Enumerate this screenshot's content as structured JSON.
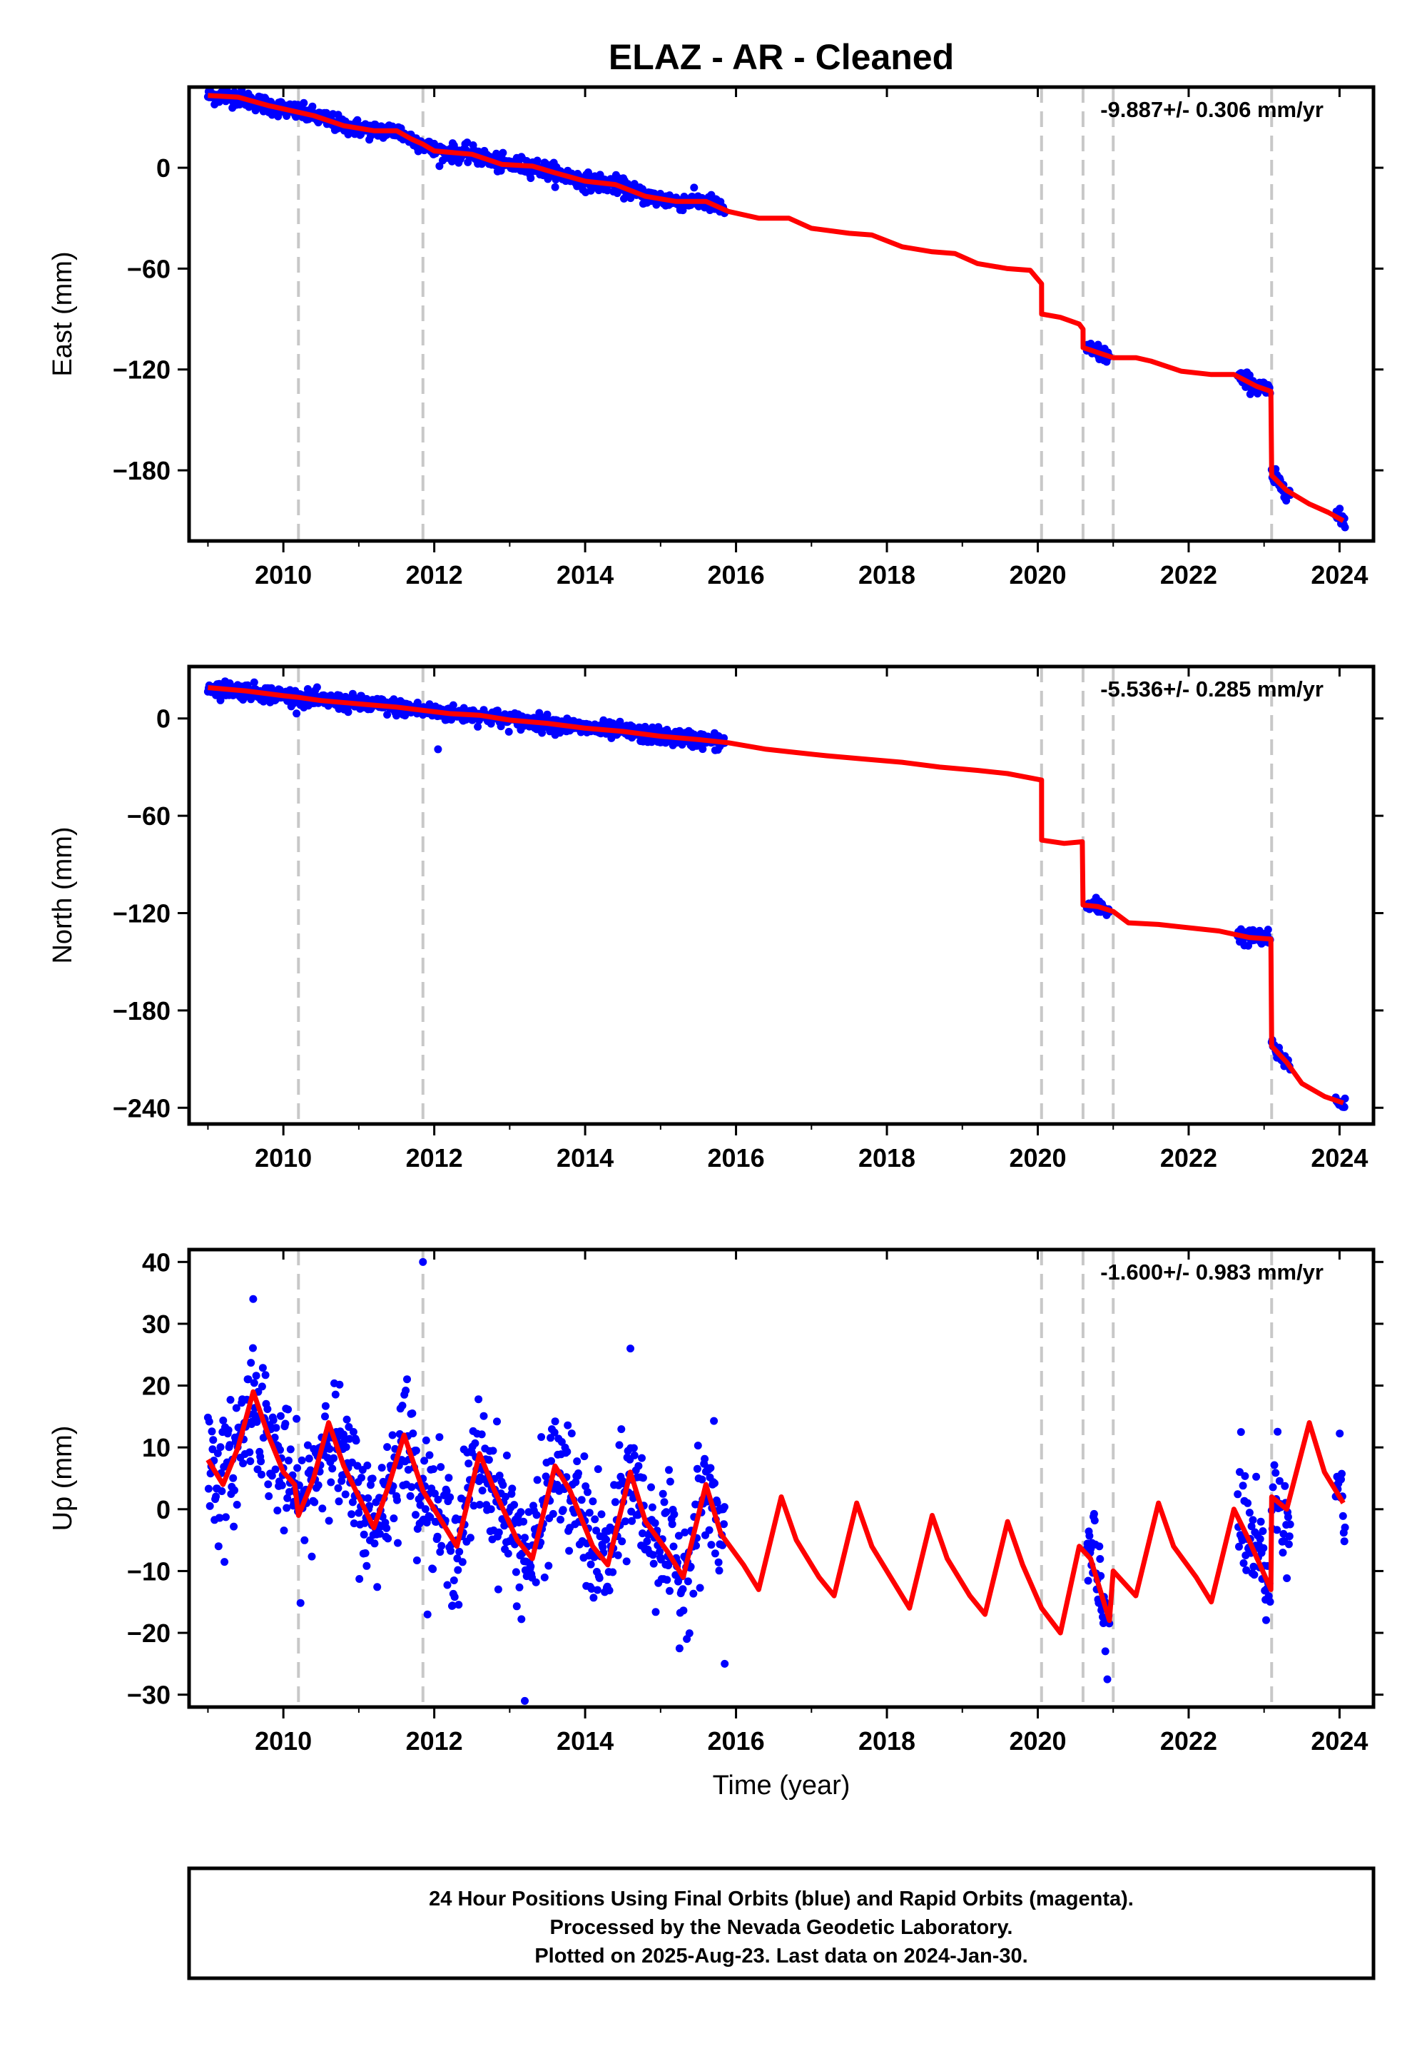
{
  "title": "ELAZ  - AR - Cleaned",
  "colors": {
    "data_points": "#0000ff",
    "model_line": "#ff0000",
    "event_lines": "#c8c8c8",
    "frame": "#000000"
  },
  "xlabel": "Time (year)",
  "footer": {
    "line1": "24 Hour Positions Using Final Orbits (blue) and Rapid Orbits (magenta).",
    "line2": "Processed by the Nevada Geodetic Laboratory.",
    "line3": "Plotted on 2025-Aug-23. Last data on 2024-Jan-30."
  },
  "chart_data": [
    {
      "type": "scatter",
      "name": "east",
      "ylabel": "East (mm)",
      "rate_label": "-9.887+/- 0.306 mm/yr",
      "xlim": [
        2008.75,
        2024.45
      ],
      "ylim": [
        -222,
        48
      ],
      "x_ticks": [
        2010,
        2012,
        2014,
        2016,
        2018,
        2020,
        2022,
        2024
      ],
      "y_ticks": [
        0,
        -60,
        -120,
        -180
      ],
      "event_lines": [
        2010.2,
        2011.85,
        2020.05,
        2020.6,
        2021.0,
        2023.1
      ],
      "data_segments": [
        [
          2009.0,
          2015.85
        ],
        [
          2020.65,
          2020.95
        ],
        [
          2022.65,
          2023.08
        ],
        [
          2023.1,
          2023.35
        ],
        [
          2023.95,
          2024.08
        ]
      ],
      "scatter_noise_mm": 2.5,
      "model": [
        [
          2009.0,
          43
        ],
        [
          2009.4,
          42
        ],
        [
          2009.8,
          37
        ],
        [
          2010.2,
          33
        ],
        [
          2010.4,
          31
        ],
        [
          2010.8,
          25
        ],
        [
          2011.2,
          22
        ],
        [
          2011.5,
          22
        ],
        [
          2011.7,
          17
        ],
        [
          2011.85,
          14
        ],
        [
          2012.0,
          10
        ],
        [
          2012.5,
          8
        ],
        [
          2012.9,
          2
        ],
        [
          2013.3,
          1
        ],
        [
          2013.6,
          -3
        ],
        [
          2014.0,
          -8
        ],
        [
          2014.4,
          -10
        ],
        [
          2014.8,
          -17
        ],
        [
          2015.2,
          -20
        ],
        [
          2015.6,
          -20
        ],
        [
          2015.9,
          -26
        ],
        [
          2016.3,
          -30
        ],
        [
          2016.7,
          -30
        ],
        [
          2017.0,
          -36
        ],
        [
          2017.5,
          -39
        ],
        [
          2017.8,
          -40
        ],
        [
          2018.2,
          -47
        ],
        [
          2018.6,
          -50
        ],
        [
          2018.9,
          -51
        ],
        [
          2019.2,
          -57
        ],
        [
          2019.6,
          -60
        ],
        [
          2019.9,
          -61
        ],
        [
          2020.05,
          -69
        ],
        [
          2020.051,
          -87
        ],
        [
          2020.3,
          -89
        ],
        [
          2020.55,
          -93
        ],
        [
          2020.6,
          -96
        ],
        [
          2020.601,
          -107
        ],
        [
          2020.8,
          -110
        ],
        [
          2021.0,
          -113
        ],
        [
          2021.3,
          -113
        ],
        [
          2021.5,
          -115
        ],
        [
          2021.9,
          -121
        ],
        [
          2022.3,
          -123
        ],
        [
          2022.6,
          -123
        ],
        [
          2022.9,
          -130
        ],
        [
          2023.09,
          -133
        ],
        [
          2023.1,
          -183
        ],
        [
          2023.3,
          -192
        ],
        [
          2023.6,
          -200
        ],
        [
          2023.85,
          -205
        ],
        [
          2024.05,
          -210
        ]
      ]
    },
    {
      "type": "scatter",
      "name": "north",
      "ylabel": "North (mm)",
      "rate_label": "-5.536+/- 0.285 mm/yr",
      "xlim": [
        2008.75,
        2024.45
      ],
      "ylim": [
        -250,
        32
      ],
      "x_ticks": [
        2010,
        2012,
        2014,
        2016,
        2018,
        2020,
        2022,
        2024
      ],
      "y_ticks": [
        0,
        -60,
        -120,
        -180,
        -240
      ],
      "event_lines": [
        2010.2,
        2011.85,
        2020.05,
        2020.6,
        2021.0,
        2023.1
      ],
      "data_segments": [
        [
          2009.0,
          2015.85
        ],
        [
          2020.65,
          2020.95
        ],
        [
          2022.65,
          2023.08
        ],
        [
          2023.1,
          2023.35
        ],
        [
          2023.95,
          2024.08
        ]
      ],
      "scatter_noise_mm": 2.5,
      "outliers": [
        [
          2012.05,
          -19
        ]
      ],
      "model": [
        [
          2009.0,
          19
        ],
        [
          2009.5,
          17
        ],
        [
          2010.0,
          14
        ],
        [
          2010.2,
          13
        ],
        [
          2010.5,
          11
        ],
        [
          2011.0,
          9
        ],
        [
          2011.5,
          7
        ],
        [
          2011.85,
          5
        ],
        [
          2012.2,
          3
        ],
        [
          2012.6,
          2
        ],
        [
          2013.0,
          -1
        ],
        [
          2013.5,
          -3
        ],
        [
          2014.0,
          -6
        ],
        [
          2014.5,
          -8
        ],
        [
          2015.0,
          -11
        ],
        [
          2015.5,
          -13
        ],
        [
          2015.9,
          -15
        ],
        [
          2016.4,
          -19
        ],
        [
          2016.8,
          -21
        ],
        [
          2017.2,
          -23
        ],
        [
          2017.7,
          -25
        ],
        [
          2018.2,
          -27
        ],
        [
          2018.7,
          -30
        ],
        [
          2019.2,
          -32
        ],
        [
          2019.6,
          -34
        ],
        [
          2020.05,
          -38
        ],
        [
          2020.051,
          -75
        ],
        [
          2020.35,
          -77
        ],
        [
          2020.59,
          -76
        ],
        [
          2020.6,
          -115
        ],
        [
          2020.8,
          -116
        ],
        [
          2021.0,
          -119
        ],
        [
          2021.2,
          -126
        ],
        [
          2021.6,
          -127
        ],
        [
          2022.0,
          -129
        ],
        [
          2022.4,
          -131
        ],
        [
          2022.8,
          -135
        ],
        [
          2023.09,
          -136
        ],
        [
          2023.1,
          -202
        ],
        [
          2023.3,
          -212
        ],
        [
          2023.5,
          -225
        ],
        [
          2023.8,
          -233
        ],
        [
          2024.05,
          -237
        ]
      ]
    },
    {
      "type": "scatter",
      "name": "up",
      "ylabel": "Up (mm)",
      "rate_label": "-1.600+/- 0.983 mm/yr",
      "xlim": [
        2008.75,
        2024.45
      ],
      "ylim": [
        -32,
        42
      ],
      "x_ticks": [
        2010,
        2012,
        2014,
        2016,
        2018,
        2020,
        2022,
        2024
      ],
      "y_ticks": [
        40,
        30,
        20,
        10,
        0,
        -10,
        -20,
        -30
      ],
      "event_lines": [
        2010.2,
        2011.85,
        2020.05,
        2020.6,
        2021.0,
        2023.1
      ],
      "data_segments": [
        [
          2009.0,
          2015.85
        ],
        [
          2020.65,
          2020.95
        ],
        [
          2022.65,
          2023.08
        ],
        [
          2023.1,
          2023.35
        ],
        [
          2023.95,
          2024.08
        ]
      ],
      "scatter_noise_mm": 5,
      "outliers": [
        [
          2011.85,
          40
        ],
        [
          2009.6,
          34
        ],
        [
          2014.6,
          26
        ],
        [
          2013.2,
          -31
        ],
        [
          2015.85,
          -25
        ]
      ],
      "model": [
        [
          2009.0,
          8
        ],
        [
          2009.2,
          4
        ],
        [
          2009.4,
          10
        ],
        [
          2009.6,
          19
        ],
        [
          2009.8,
          12
        ],
        [
          2010.0,
          6
        ],
        [
          2010.15,
          4
        ],
        [
          2010.2,
          -1
        ],
        [
          2010.4,
          5
        ],
        [
          2010.6,
          14
        ],
        [
          2010.8,
          7
        ],
        [
          2011.0,
          2
        ],
        [
          2011.2,
          -3
        ],
        [
          2011.4,
          4
        ],
        [
          2011.6,
          12
        ],
        [
          2011.85,
          3
        ],
        [
          2012.0,
          0
        ],
        [
          2012.3,
          -6
        ],
        [
          2012.6,
          9
        ],
        [
          2012.8,
          3
        ],
        [
          2013.1,
          -5
        ],
        [
          2013.3,
          -8
        ],
        [
          2013.6,
          7
        ],
        [
          2013.8,
          3
        ],
        [
          2014.1,
          -6
        ],
        [
          2014.3,
          -9
        ],
        [
          2014.6,
          6
        ],
        [
          2014.8,
          -2
        ],
        [
          2015.1,
          -7
        ],
        [
          2015.3,
          -11
        ],
        [
          2015.6,
          4
        ],
        [
          2015.8,
          -4
        ],
        [
          2016.1,
          -9
        ],
        [
          2016.3,
          -13
        ],
        [
          2016.6,
          2
        ],
        [
          2016.8,
          -5
        ],
        [
          2017.1,
          -11
        ],
        [
          2017.3,
          -14
        ],
        [
          2017.6,
          1
        ],
        [
          2017.8,
          -6
        ],
        [
          2018.1,
          -12
        ],
        [
          2018.3,
          -16
        ],
        [
          2018.6,
          -1
        ],
        [
          2018.8,
          -8
        ],
        [
          2019.1,
          -14
        ],
        [
          2019.3,
          -17
        ],
        [
          2019.6,
          -2
        ],
        [
          2019.8,
          -9
        ],
        [
          2020.05,
          -16
        ],
        [
          2020.3,
          -20
        ],
        [
          2020.55,
          -6
        ],
        [
          2020.7,
          -8
        ],
        [
          2020.95,
          -18
        ],
        [
          2021.0,
          -10
        ],
        [
          2021.3,
          -14
        ],
        [
          2021.6,
          1
        ],
        [
          2021.8,
          -6
        ],
        [
          2022.1,
          -11
        ],
        [
          2022.3,
          -15
        ],
        [
          2022.6,
          0
        ],
        [
          2022.8,
          -5
        ],
        [
          2023.09,
          -13
        ],
        [
          2023.1,
          2
        ],
        [
          2023.3,
          0
        ],
        [
          2023.6,
          14
        ],
        [
          2023.8,
          6
        ],
        [
          2024.05,
          1
        ]
      ]
    }
  ]
}
